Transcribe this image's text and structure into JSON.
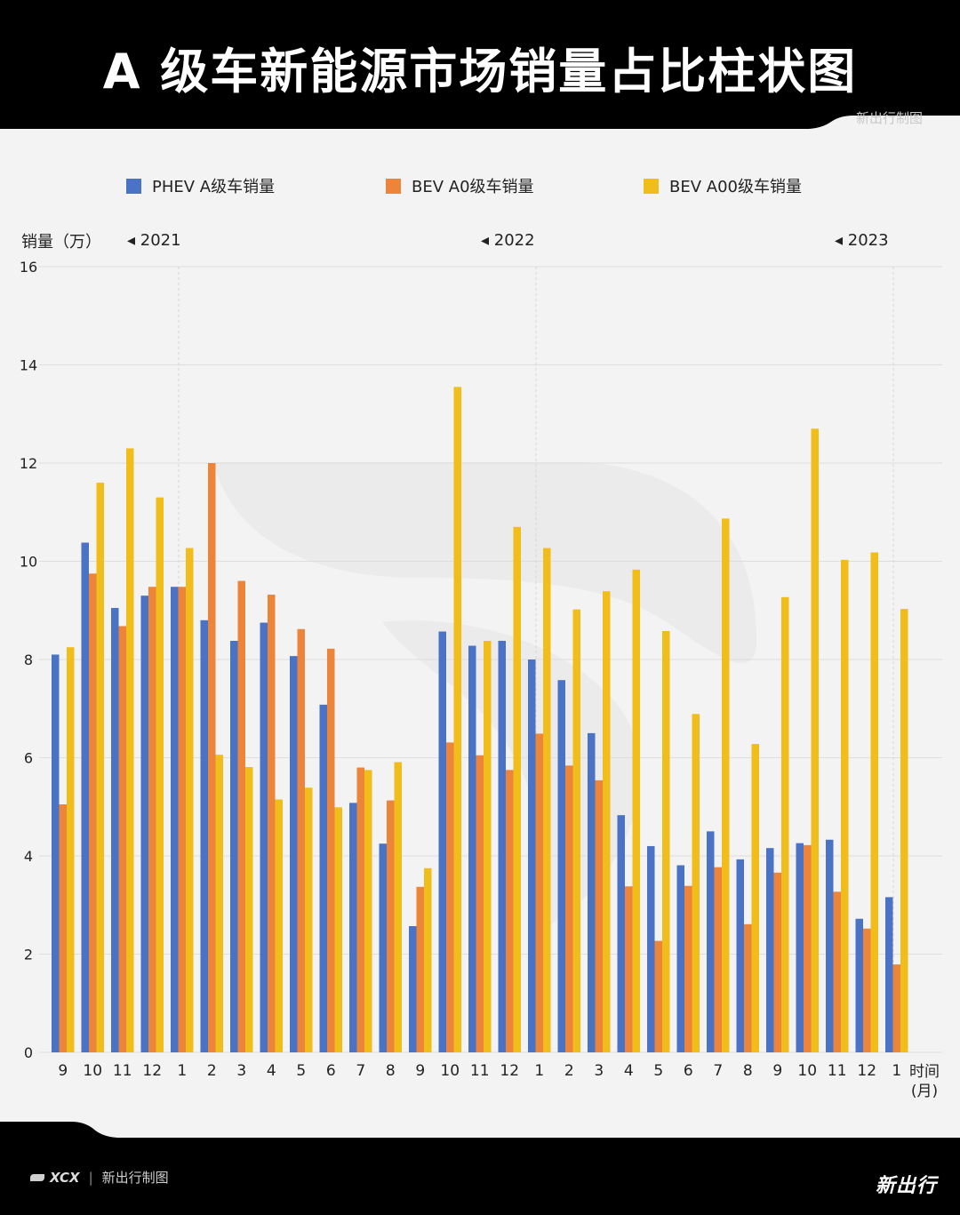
{
  "title": "A 级车新能源市场销量占比柱状图",
  "credit": "新出行制图",
  "footer": {
    "brand": "XCX",
    "separator": "|",
    "credit": "新出行制图",
    "logo": "新出行"
  },
  "colors": {
    "phev": "#4a72c5",
    "bev_a0": "#ec843a",
    "bev_a00": "#f1bd1a",
    "header": "#000000"
  },
  "chart_data": {
    "type": "bar",
    "title": "A 级车新能源市场销量占比柱状图",
    "ylabel": "销量（万）",
    "xlabel": "时间\n(月)",
    "xlabel_lines": [
      "时间",
      "(月)"
    ],
    "ylim": [
      0,
      16
    ],
    "yticks": [
      0,
      2,
      4,
      6,
      8,
      10,
      12,
      14,
      16
    ],
    "grid": true,
    "legend_position": "top",
    "year_markers": [
      {
        "label": "◂ 2021",
        "category_index": 4
      },
      {
        "label": "◂ 2022",
        "category_index": 16
      },
      {
        "label": "◂ 2023",
        "category_index": 28
      }
    ],
    "categories": [
      "9",
      "10",
      "11",
      "12",
      "1",
      "2",
      "3",
      "4",
      "5",
      "6",
      "7",
      "8",
      "9",
      "10",
      "11",
      "12",
      "1",
      "2",
      "3",
      "4",
      "5",
      "6",
      "7",
      "8",
      "9",
      "10",
      "11",
      "12",
      "1"
    ],
    "series": [
      {
        "name": "PHEV A级车销量",
        "color": "#4a72c5",
        "values": [
          8.1,
          10.38,
          9.05,
          9.3,
          9.48,
          8.8,
          8.38,
          8.75,
          8.07,
          7.08,
          5.08,
          4.25,
          2.57,
          8.57,
          8.28,
          8.38,
          8.0,
          7.58,
          6.5,
          4.83,
          4.2,
          3.81,
          4.5,
          3.93,
          4.16,
          4.26,
          4.33,
          2.72,
          3.16
        ]
      },
      {
        "name": "BEV A0级车销量",
        "color": "#ec843a",
        "values": [
          5.05,
          9.75,
          8.68,
          9.48,
          9.48,
          12.0,
          9.6,
          9.32,
          8.62,
          8.22,
          5.8,
          5.13,
          3.37,
          6.31,
          6.05,
          5.75,
          6.49,
          5.84,
          5.54,
          3.38,
          2.27,
          3.39,
          3.77,
          2.61,
          3.66,
          4.22,
          3.27,
          2.52,
          1.79
        ]
      },
      {
        "name": "BEV A00级车销量",
        "color": "#f1bd1a",
        "values": [
          8.25,
          11.6,
          12.3,
          11.3,
          10.27,
          6.06,
          5.81,
          5.15,
          5.39,
          4.99,
          5.75,
          5.91,
          3.75,
          13.55,
          8.38,
          10.7,
          10.27,
          9.02,
          9.39,
          9.83,
          8.58,
          6.89,
          10.87,
          6.28,
          9.27,
          12.7,
          10.03,
          10.18,
          9.03
        ]
      }
    ]
  }
}
